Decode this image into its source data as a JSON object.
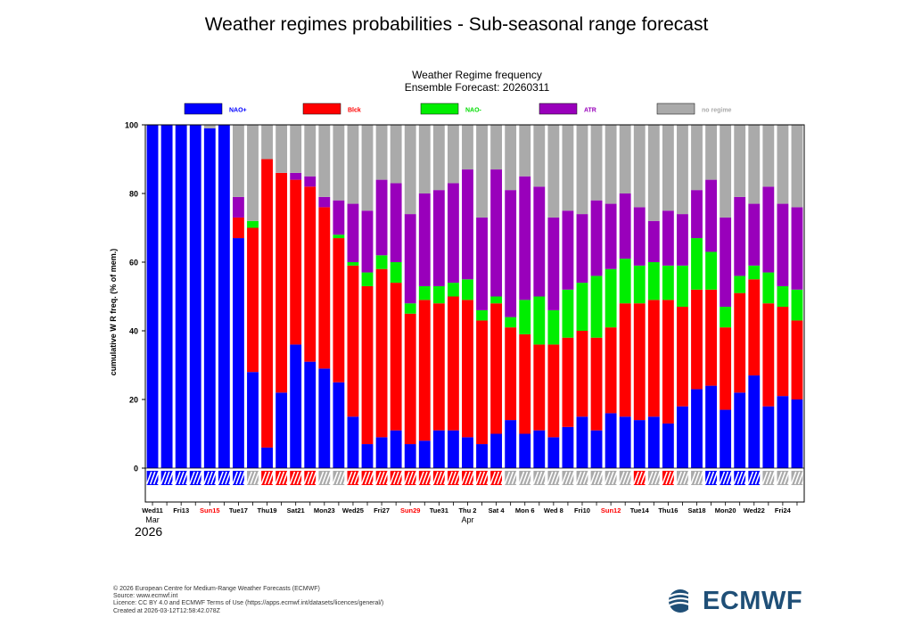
{
  "page_title": "Weather regimes probabilities - Sub-seasonal range forecast",
  "chart_data": {
    "type": "stacked-bar",
    "title": "Weather Regime frequency",
    "subtitle": "Ensemble Forecast: 20260311",
    "ylabel": "cumulative W R freq. (% of mem.)",
    "ylim": [
      0,
      100
    ],
    "yticks": [
      0,
      20,
      40,
      60,
      80,
      100
    ],
    "year_label": "2026",
    "month_labels": [
      {
        "text": "Mar",
        "index": 0
      },
      {
        "text": "Apr",
        "index": 22
      }
    ],
    "x_labels": [
      {
        "text": "Wed11",
        "index": 0,
        "color": "#000000"
      },
      {
        "text": "Fri13",
        "index": 2,
        "color": "#000000"
      },
      {
        "text": "Sun15",
        "index": 4,
        "color": "#ff0000"
      },
      {
        "text": "Tue17",
        "index": 6,
        "color": "#000000"
      },
      {
        "text": "Thu19",
        "index": 8,
        "color": "#000000"
      },
      {
        "text": "Sat21",
        "index": 10,
        "color": "#000000"
      },
      {
        "text": "Mon23",
        "index": 12,
        "color": "#000000"
      },
      {
        "text": "Wed25",
        "index": 14,
        "color": "#000000"
      },
      {
        "text": "Fri27",
        "index": 16,
        "color": "#000000"
      },
      {
        "text": "Sun29",
        "index": 18,
        "color": "#ff0000"
      },
      {
        "text": "Tue31",
        "index": 20,
        "color": "#000000"
      },
      {
        "text": "Thu 2",
        "index": 22,
        "color": "#000000"
      },
      {
        "text": "Sat 4",
        "index": 24,
        "color": "#000000"
      },
      {
        "text": "Mon 6",
        "index": 26,
        "color": "#000000"
      },
      {
        "text": "Wed 8",
        "index": 28,
        "color": "#000000"
      },
      {
        "text": "Fri10",
        "index": 30,
        "color": "#000000"
      },
      {
        "text": "Sun12",
        "index": 32,
        "color": "#ff0000"
      },
      {
        "text": "Tue14",
        "index": 34,
        "color": "#000000"
      },
      {
        "text": "Thu16",
        "index": 36,
        "color": "#000000"
      },
      {
        "text": "Sat18",
        "index": 38,
        "color": "#000000"
      },
      {
        "text": "Mon20",
        "index": 40,
        "color": "#000000"
      },
      {
        "text": "Wed22",
        "index": 42,
        "color": "#000000"
      },
      {
        "text": "Fri24",
        "index": 44,
        "color": "#000000"
      }
    ],
    "series": [
      {
        "name": "NAO+",
        "color": "#0000ff",
        "label_color": "#0000ff",
        "values": [
          100,
          100,
          100,
          100,
          99,
          100,
          67,
          28,
          6,
          22,
          36,
          31,
          29,
          25,
          15,
          7,
          9,
          11,
          7,
          8,
          11,
          11,
          9,
          7,
          10,
          14,
          10,
          11,
          9,
          12,
          15,
          11,
          16,
          15,
          14,
          15,
          13,
          18,
          23,
          24,
          17,
          22,
          27,
          18,
          21,
          20
        ]
      },
      {
        "name": "Blck",
        "color": "#ff0000",
        "label_color": "#ff0000",
        "values": [
          0,
          0,
          0,
          0,
          0,
          0,
          6,
          42,
          84,
          64,
          48,
          51,
          47,
          42,
          44,
          46,
          49,
          43,
          38,
          41,
          37,
          39,
          40,
          36,
          38,
          27,
          29,
          25,
          27,
          26,
          25,
          27,
          25,
          33,
          34,
          34,
          36,
          29,
          29,
          28,
          24,
          29,
          28,
          30,
          26,
          23
        ]
      },
      {
        "name": "NAO-",
        "color": "#00ee00",
        "label_color": "#00dd00",
        "values": [
          0,
          0,
          0,
          0,
          0,
          0,
          0,
          2,
          0,
          0,
          0,
          0,
          0,
          1,
          1,
          4,
          4,
          6,
          3,
          4,
          5,
          4,
          6,
          3,
          2,
          3,
          10,
          14,
          10,
          14,
          14,
          18,
          17,
          13,
          11,
          11,
          10,
          12,
          15,
          11,
          6,
          5,
          4,
          9,
          6,
          9
        ]
      },
      {
        "name": "ATR",
        "color": "#9900bb",
        "label_color": "#9900bb",
        "values": [
          0,
          0,
          0,
          0,
          0,
          0,
          6,
          0,
          0,
          0,
          2,
          3,
          3,
          10,
          17,
          18,
          22,
          23,
          26,
          27,
          28,
          29,
          32,
          27,
          37,
          37,
          36,
          32,
          27,
          23,
          20,
          22,
          19,
          19,
          17,
          12,
          16,
          15,
          14,
          21,
          26,
          23,
          18,
          25,
          24,
          24
        ]
      },
      {
        "name": "no regime",
        "color": "#aaaaaa",
        "label_color": "#aaaaaa",
        "values": [
          0,
          0,
          0,
          0,
          1,
          0,
          21,
          28,
          10,
          14,
          14,
          15,
          21,
          22,
          23,
          25,
          16,
          17,
          26,
          20,
          19,
          17,
          13,
          27,
          13,
          19,
          15,
          18,
          27,
          25,
          26,
          22,
          23,
          20,
          24,
          28,
          25,
          26,
          19,
          16,
          27,
          21,
          23,
          18,
          23,
          24
        ]
      }
    ],
    "dominant_regime": [
      "NAO+",
      "NAO+",
      "NAO+",
      "NAO+",
      "NAO+",
      "NAO+",
      "NAO+",
      "no regime",
      "Blck",
      "Blck",
      "Blck",
      "Blck",
      "no regime",
      "no regime",
      "Blck",
      "Blck",
      "Blck",
      "Blck",
      "Blck",
      "Blck",
      "Blck",
      "Blck",
      "Blck",
      "Blck",
      "Blck",
      "no regime",
      "no regime",
      "no regime",
      "no regime",
      "no regime",
      "no regime",
      "no regime",
      "no regime",
      "no regime",
      "Blck",
      "no regime",
      "Blck",
      "no regime",
      "no regime",
      "NAO+",
      "NAO+",
      "NAO+",
      "NAO+",
      "no regime",
      "no regime",
      "no regime"
    ]
  },
  "footer": {
    "line1": "© 2026 European Centre for Medium-Range Weather Forecasts (ECMWF)",
    "line2": "Source: www.ecmwf.int",
    "line3": "Licence: CC BY 4.0 and ECMWF Terms of Use (https://apps.ecmwf.int/datasets/licences/general/)",
    "line4": "Created at 2026-03-12T12:58:42.078Z"
  },
  "logo": {
    "text": "ECMWF",
    "color": "#1f4f77"
  }
}
